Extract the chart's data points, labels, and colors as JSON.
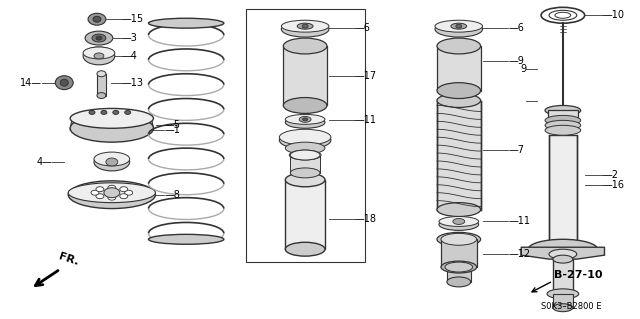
{
  "bg_color": "#ffffff",
  "line_color": "#333333",
  "part_color": "#dddddd",
  "dark_color": "#888888",
  "text_color": "#000000",
  "diagram_label": "B-27-10",
  "ref_code": "S0K3–B2800 E",
  "fr_label": "FR.",
  "figsize": [
    6.4,
    3.19
  ],
  "dpi": 100,
  "label_fs": 7.0,
  "bold_fs": 8.5
}
